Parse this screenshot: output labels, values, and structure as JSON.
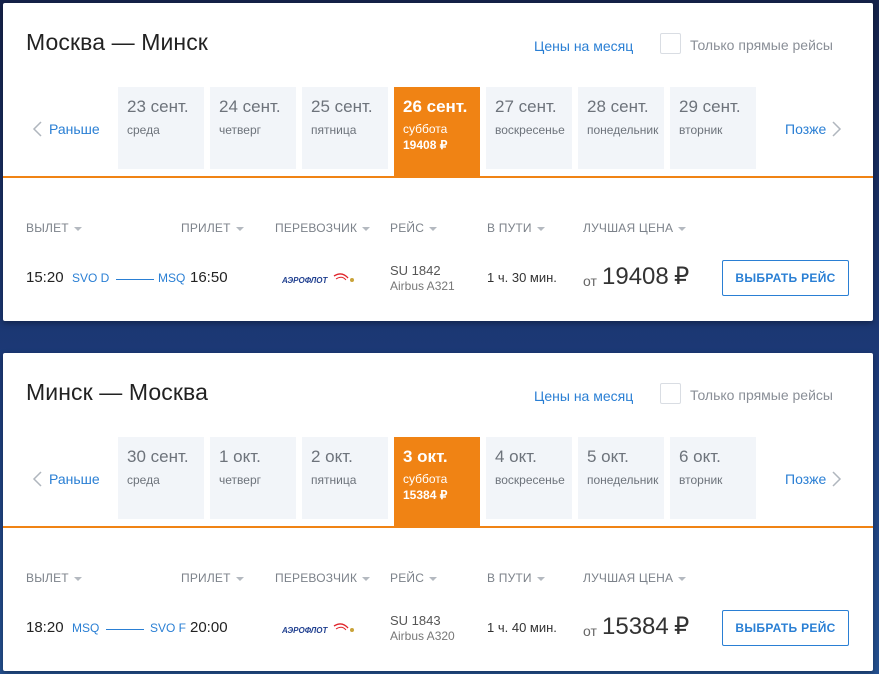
{
  "colors": {
    "accent": "#f08314",
    "link": "#2a7fd4"
  },
  "labels": {
    "month_prices": "Цены на месяц",
    "direct_only": "Только прямые рейсы",
    "earlier": "Раньше",
    "later": "Позже",
    "select_flight": "ВЫБРАТЬ РЕЙС",
    "price_from": "от",
    "currency": "₽"
  },
  "columns": [
    "ВЫЛЕТ",
    "ПРИЛЕТ",
    "ПЕРЕВОЗЧИК",
    "РЕЙС",
    "В ПУТИ",
    "ЛУЧШАЯ ЦЕНА"
  ],
  "sections": [
    {
      "title": "Москва — Минск",
      "dates": [
        {
          "day": "23 сент.",
          "weekday": "среда"
        },
        {
          "day": "24 сент.",
          "weekday": "четверг"
        },
        {
          "day": "25 сент.",
          "weekday": "пятница"
        },
        {
          "day": "26 сент.",
          "weekday": "суббота",
          "price": "19408 ₽",
          "selected": true
        },
        {
          "day": "27 сент.",
          "weekday": "воскресенье"
        },
        {
          "day": "28 сент.",
          "weekday": "понедельник"
        },
        {
          "day": "29 сент.",
          "weekday": "вторник"
        }
      ],
      "flight": {
        "departure_time": "15:20",
        "departure_airport": "SVO D",
        "arrival_airport": "MSQ",
        "arrival_time": "16:50",
        "carrier": "АЭРОФЛОТ",
        "flight_number": "SU 1842",
        "aircraft": "Airbus A321",
        "duration": "1 ч. 30 мин.",
        "price": "19408"
      }
    },
    {
      "title": "Минск — Москва",
      "dates": [
        {
          "day": "30 сент.",
          "weekday": "среда"
        },
        {
          "day": "1 окт.",
          "weekday": "четверг"
        },
        {
          "day": "2 окт.",
          "weekday": "пятница"
        },
        {
          "day": "3 окт.",
          "weekday": "суббота",
          "price": "15384 ₽",
          "selected": true
        },
        {
          "day": "4 окт.",
          "weekday": "воскресенье"
        },
        {
          "day": "5 окт.",
          "weekday": "понедельник"
        },
        {
          "day": "6 окт.",
          "weekday": "вторник"
        }
      ],
      "flight": {
        "departure_time": "18:20",
        "departure_airport": "MSQ",
        "arrival_airport": "SVO F",
        "arrival_time": "20:00",
        "carrier": "АЭРОФЛОТ",
        "flight_number": "SU 1843",
        "aircraft": "Airbus A320",
        "duration": "1 ч. 40 мин.",
        "price": "15384"
      }
    }
  ]
}
